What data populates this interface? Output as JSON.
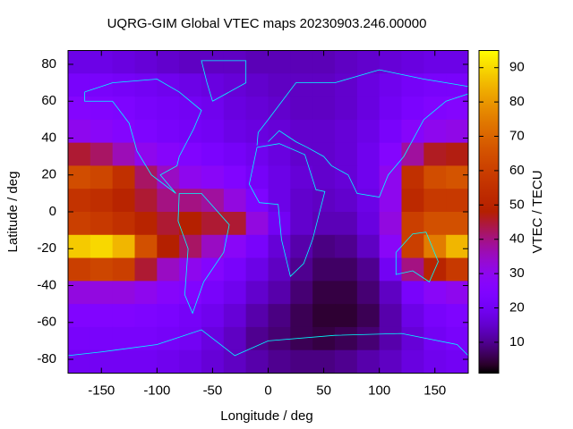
{
  "chart_data": {
    "type": "heatmap",
    "title": "UQRG-GIM Global VTEC maps 20230903.246.00000",
    "x_label": "Longitude / deg",
    "y_label": "Latitude / deg",
    "colorbar_label": "VTEC / TECU",
    "xlim": [
      -180,
      180
    ],
    "ylim": [
      -87.5,
      87.5
    ],
    "xticks": [
      -150,
      -100,
      -50,
      0,
      50,
      100,
      150
    ],
    "yticks": [
      -80,
      -60,
      -40,
      -20,
      0,
      20,
      40,
      60,
      80
    ],
    "zlim": [
      1,
      95
    ],
    "zticks": [
      10,
      20,
      30,
      40,
      50,
      60,
      70,
      80,
      90
    ],
    "x": [
      -170,
      -150,
      -130,
      -110,
      -90,
      -70,
      -50,
      -30,
      -10,
      10,
      30,
      50,
      70,
      90,
      110,
      130,
      150,
      170
    ],
    "y": [
      81.25,
      68.75,
      56.25,
      43.75,
      31.25,
      18.75,
      6.25,
      -6.25,
      -18.75,
      -31.25,
      -43.75,
      -56.25,
      -68.75,
      -81.25
    ],
    "values": [
      [
        18,
        18,
        17,
        16,
        15,
        14,
        14,
        14,
        13,
        13,
        13,
        13,
        14,
        15,
        16,
        17,
        18,
        18
      ],
      [
        22,
        22,
        21,
        20,
        19,
        18,
        17,
        16,
        15,
        14,
        14,
        14,
        15,
        17,
        19,
        21,
        22,
        22
      ],
      [
        26,
        25,
        24,
        22,
        21,
        20,
        19,
        17,
        16,
        15,
        14,
        14,
        15,
        17,
        20,
        23,
        25,
        26
      ],
      [
        30,
        28,
        26,
        24,
        22,
        21,
        20,
        18,
        17,
        16,
        15,
        15,
        16,
        18,
        22,
        27,
        30,
        31
      ],
      [
        45,
        42,
        36,
        30,
        27,
        25,
        23,
        21,
        19,
        17,
        15,
        15,
        16,
        19,
        26,
        38,
        46,
        47
      ],
      [
        64,
        62,
        55,
        42,
        35,
        30,
        28,
        25,
        21,
        18,
        16,
        15,
        16,
        19,
        30,
        55,
        64,
        66
      ],
      [
        56,
        54,
        50,
        45,
        40,
        40,
        38,
        32,
        24,
        18,
        15,
        14,
        15,
        18,
        30,
        52,
        58,
        58
      ],
      [
        60,
        58,
        55,
        50,
        45,
        48,
        45,
        45,
        32,
        20,
        15,
        13,
        13,
        17,
        32,
        60,
        65,
        65
      ],
      [
        88,
        90,
        85,
        65,
        48,
        42,
        35,
        28,
        22,
        16,
        12,
        9,
        10,
        14,
        28,
        60,
        75,
        85
      ],
      [
        60,
        62,
        60,
        45,
        35,
        30,
        26,
        22,
        18,
        14,
        10,
        7,
        7,
        10,
        20,
        40,
        50,
        58
      ],
      [
        32,
        32,
        32,
        30,
        27,
        25,
        22,
        19,
        15,
        12,
        8,
        5,
        5,
        8,
        14,
        22,
        28,
        30
      ],
      [
        25,
        25,
        25,
        24,
        23,
        21,
        19,
        16,
        12,
        9,
        6,
        4,
        4,
        6,
        12,
        18,
        22,
        24
      ],
      [
        22,
        22,
        22,
        22,
        21,
        20,
        17,
        14,
        10,
        8,
        6,
        5,
        6,
        8,
        12,
        16,
        20,
        22
      ],
      [
        20,
        20,
        20,
        20,
        19,
        18,
        16,
        14,
        12,
        10,
        9,
        9,
        10,
        12,
        14,
        17,
        19,
        20
      ]
    ]
  }
}
